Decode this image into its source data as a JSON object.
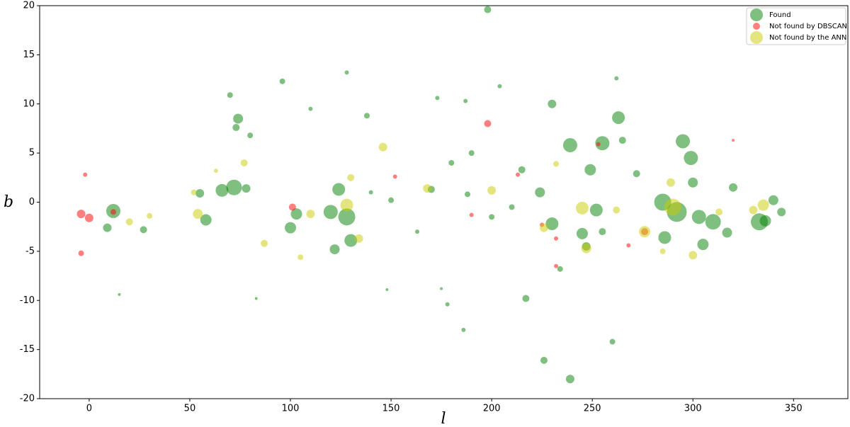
{
  "chart_data": {
    "type": "scatter",
    "x_label": "l",
    "y_label": "b",
    "xlim": [
      -24.6,
      377
    ],
    "ylim": [
      -20,
      20
    ],
    "xticks": [
      0,
      50,
      100,
      150,
      200,
      250,
      300,
      350
    ],
    "yticks": [
      -20,
      -15,
      -10,
      -5,
      0,
      5,
      10,
      15,
      20
    ],
    "legend": "upper right",
    "alpha": 0.5,
    "series": [
      {
        "name": "Found",
        "color": "#008000",
        "x": [
          198,
          70,
          96,
          74,
          73,
          128,
          262,
          263,
          230,
          265,
          255,
          239,
          295,
          299,
          249,
          72,
          66,
          78,
          124,
          120,
          128,
          100,
          103,
          12,
          9,
          27,
          58,
          55,
          130,
          122,
          285,
          292,
          303,
          310,
          317,
          333,
          344,
          286,
          305,
          230,
          247,
          245,
          224,
          215,
          252,
          234,
          239,
          226,
          260,
          217,
          186,
          178,
          148,
          175,
          150,
          170,
          188,
          200,
          210,
          163,
          140,
          83,
          15,
          300,
          320,
          340,
          336,
          255,
          272,
          180,
          190,
          204,
          173,
          187,
          110,
          138,
          80
        ],
        "values": [
          19.6,
          10.9,
          12.3,
          8.5,
          7.6,
          13.2,
          12.6,
          8.6,
          10,
          6.3,
          6,
          5.8,
          6.2,
          4.5,
          3.3,
          1.5,
          1.2,
          1.4,
          1.3,
          -1,
          -1.5,
          -2.6,
          -1.2,
          -0.9,
          -2.6,
          -2.8,
          -1.8,
          0.9,
          -3.9,
          -4.8,
          0,
          -1,
          -1.5,
          -2,
          -3.1,
          -2,
          -1,
          -3.6,
          -4.3,
          -2.2,
          -4.5,
          -3.2,
          1,
          3.3,
          -0.8,
          -6.8,
          -18,
          -16.1,
          -14.2,
          -9.8,
          -13,
          -10.4,
          -8.9,
          -8.8,
          0.2,
          1.3,
          0.8,
          -1.5,
          -0.5,
          -3,
          1,
          -9.8,
          -9.4,
          2,
          1.5,
          0.2,
          -1.9,
          -3,
          2.9,
          4,
          5,
          11.8,
          10.6,
          10.3,
          9.5,
          8.8,
          6.8
        ],
        "sizes": [
          5,
          4,
          4,
          7,
          5,
          3,
          3,
          9,
          6,
          5,
          10,
          10,
          10,
          10,
          8,
          11,
          9,
          6,
          9,
          10,
          12,
          8,
          8,
          10,
          6,
          5,
          8,
          6,
          9,
          7,
          12,
          14,
          10,
          11,
          7,
          12,
          6,
          9,
          8,
          9,
          6,
          8,
          7,
          5,
          9,
          4,
          6,
          5,
          4,
          5,
          3,
          3,
          2,
          2,
          4,
          5,
          4,
          4,
          4,
          3,
          3,
          2,
          2,
          7,
          6,
          7,
          8,
          5,
          5,
          4,
          4,
          3,
          3,
          3,
          3,
          4,
          4
        ]
      },
      {
        "name": "Not found by DBSCAN",
        "color": "#ff0000",
        "x": [
          -4,
          0,
          -4,
          -2,
          12,
          198,
          101,
          276,
          213,
          232,
          268,
          253,
          152,
          225,
          190,
          320,
          232
        ],
        "values": [
          -1.2,
          -1.6,
          -5.2,
          2.8,
          -1,
          8,
          -0.5,
          -3,
          2.8,
          -6.5,
          -4.4,
          5.9,
          2.6,
          -2.3,
          -1.3,
          6.3,
          -3.7
        ],
        "sizes": [
          6,
          6,
          4,
          3,
          4,
          5,
          5,
          5,
          3,
          3,
          3,
          3,
          3,
          3,
          3,
          2,
          3
        ]
      },
      {
        "name": "Not found by the ANN",
        "color": "#cccc00",
        "x": [
          276,
          290,
          289,
          247,
          245,
          300,
          226,
          200,
          168,
          146,
          134,
          128,
          110,
          87,
          77,
          54,
          52,
          20,
          30,
          330,
          335,
          313,
          262,
          232,
          285,
          105,
          130,
          63
        ],
        "values": [
          -3,
          -0.5,
          2,
          -4.7,
          -0.6,
          -5.4,
          -2.6,
          1.2,
          1.4,
          5.6,
          -3.7,
          -0.3,
          -1.2,
          -4.2,
          4,
          -1.2,
          1,
          -2,
          -1.4,
          -0.8,
          -0.3,
          -1,
          -0.8,
          3.9,
          -5,
          -5.6,
          2.5,
          3.2
        ],
        "sizes": [
          8,
          12,
          6,
          7,
          9,
          6,
          6,
          6,
          6,
          6,
          6,
          9,
          6,
          5,
          5,
          7,
          4,
          5,
          4,
          6,
          8,
          5,
          5,
          4,
          4,
          4,
          5,
          3
        ]
      }
    ]
  }
}
